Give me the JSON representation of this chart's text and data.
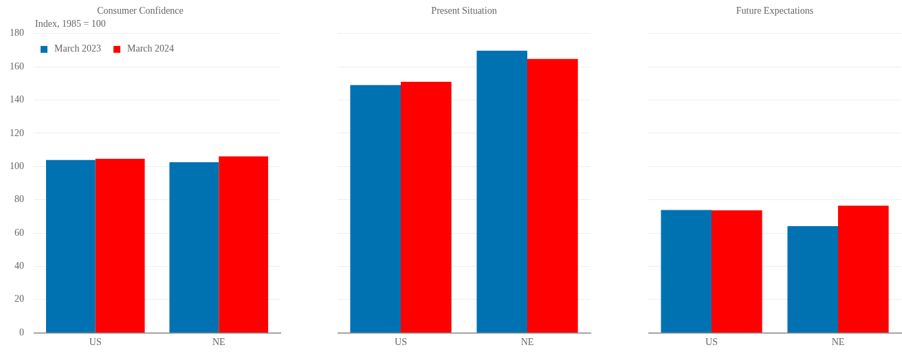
{
  "chart_data": [
    {
      "type": "bar",
      "title": "Consumer Confidence",
      "ylabel": "Index, 1985 = 100",
      "categories": [
        "US",
        "NE"
      ],
      "series": [
        {
          "name": "March 2023",
          "color": "#0071b1",
          "values": [
            104.0,
            102.6
          ]
        },
        {
          "name": "March 2024",
          "color": "#ff0000",
          "values": [
            104.7,
            106.1
          ]
        }
      ],
      "ylim": [
        0,
        180
      ],
      "yticks": [
        0,
        20,
        40,
        60,
        80,
        100,
        120,
        140,
        160,
        180
      ],
      "grid": "y",
      "legend": "top left"
    },
    {
      "type": "bar",
      "title": "Present Situation",
      "categories": [
        "US",
        "NE"
      ],
      "series": [
        {
          "color": "#0071b1",
          "values": [
            149.0,
            169.7
          ]
        },
        {
          "color": "#ff0000",
          "values": [
            151.0,
            164.7
          ]
        }
      ],
      "ylim": [
        0,
        180
      ],
      "yticks": [
        0,
        20,
        40,
        60,
        80,
        100,
        120,
        140,
        160,
        180
      ],
      "grid": "y",
      "tick_labels": "x"
    },
    {
      "type": "bar",
      "title": "Future Expectations",
      "categories": [
        "US",
        "NE"
      ],
      "series": [
        {
          "color": "#0071b1",
          "values": [
            73.9,
            64.2
          ]
        },
        {
          "color": "#ff0000",
          "values": [
            73.7,
            76.5
          ]
        }
      ],
      "ylim": [
        0,
        180
      ],
      "yticks": [
        0,
        20,
        40,
        60,
        80,
        100,
        120,
        140,
        160,
        180
      ],
      "grid": "y",
      "tick_labels": "x"
    }
  ]
}
